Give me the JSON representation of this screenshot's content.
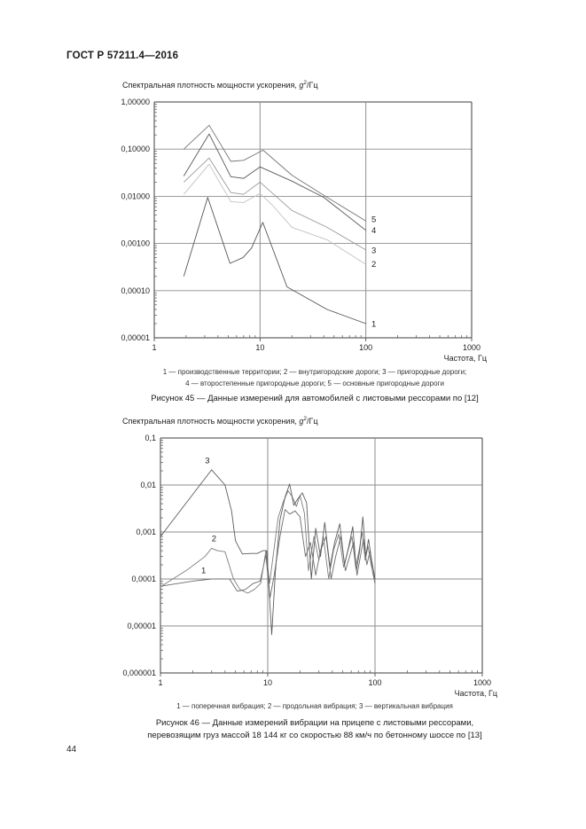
{
  "page": {
    "header": "ГОСТ Р 57211.4—2016",
    "page_number": "44"
  },
  "figure45": {
    "title_prefix": "Спектральная плотность мощности ускорения, ",
    "title_g": "g",
    "title_sup": "2",
    "title_suffix": "/Гц",
    "legend_line1": "1 — производственные территории; 2 — внутригородские дороги; 3 — пригородные дороги;",
    "legend_line2": "4 — второстепенные пригородные дороги; 5 — основные пригородные дороги",
    "caption": "Рисунок 45 — Данные измерений для автомобилей с листовыми рессорами по [12]"
  },
  "figure46": {
    "title_prefix": "Спектральная плотность мощности ускорения, ",
    "title_g": "g",
    "title_sup": "2",
    "title_suffix": "/Гц",
    "legend_line1": "1 — поперечная вибрация; 2 — продольная вибрация; 3 — вертикальная вибрация",
    "caption_line1": "Рисунок 46 — Данные измерений вибрации на прицепе с листовыми рессорами,",
    "caption_line2": "перевозящим груз массой 18 144 кг со скоростью 88 км/ч по бетонному шоссе по [13]"
  },
  "chart_data": [
    {
      "type": "line",
      "title": "Спектральная плотность мощности ускорения, g²/Гц",
      "xlabel": "Частота, Гц",
      "x_scale": "log",
      "y_scale": "log",
      "xlim": [
        1,
        1000
      ],
      "ylim": [
        1e-05,
        1
      ],
      "grid": true,
      "x_tick_labels": [
        "1",
        "10",
        "100",
        "1000"
      ],
      "y_tick_labels": [
        "1,00000",
        "0,10000",
        "0,01000",
        "0,00100",
        "0,00010",
        "0,00001"
      ],
      "series": [
        {
          "label": "1",
          "name": "производственные территории",
          "color": "#555555",
          "label_pos": [
            113,
            1.95e-05
          ],
          "points": [
            [
              1.9,
              0.0002
            ],
            [
              3.2,
              0.0095
            ],
            [
              5.2,
              0.00038
            ],
            [
              6.9,
              0.0005
            ],
            [
              8.3,
              0.0008
            ],
            [
              10.6,
              0.0028
            ],
            [
              18,
              0.00012
            ],
            [
              43,
              4e-05
            ],
            [
              100,
              2e-05
            ]
          ]
        },
        {
          "label": "2",
          "name": "внутригородские дороги",
          "color": "#c2c2c2",
          "label_pos": [
            113,
            0.00036
          ],
          "points": [
            [
              1.9,
              0.011
            ],
            [
              3.3,
              0.048
            ],
            [
              5.3,
              0.0077
            ],
            [
              7,
              0.0074
            ],
            [
              10,
              0.0115
            ],
            [
              13,
              0.0066
            ],
            [
              20,
              0.0022
            ],
            [
              43,
              0.0012
            ],
            [
              100,
              0.00036
            ]
          ]
        },
        {
          "label": "3",
          "name": "пригородные дороги",
          "color": "#9a9a9a",
          "label_pos": [
            113,
            0.00071
          ],
          "points": [
            [
              1.9,
              0.02
            ],
            [
              3.3,
              0.065
            ],
            [
              5.3,
              0.012
            ],
            [
              7,
              0.011
            ],
            [
              10,
              0.02
            ],
            [
              20,
              0.005
            ],
            [
              43,
              0.0022
            ],
            [
              100,
              0.00073
            ]
          ]
        },
        {
          "label": "4",
          "name": "второстепенные пригородные дороги",
          "color": "#585858",
          "label_pos": [
            113,
            0.0019
          ],
          "points": [
            [
              1.9,
              0.027
            ],
            [
              3.3,
              0.21
            ],
            [
              5.3,
              0.026
            ],
            [
              7,
              0.024
            ],
            [
              10,
              0.042
            ],
            [
              20,
              0.021
            ],
            [
              40,
              0.0095
            ],
            [
              100,
              0.0019
            ]
          ]
        },
        {
          "label": "5",
          "name": "основные пригородные дороги",
          "color": "#757575",
          "label_pos": [
            113,
            0.0032
          ],
          "points": [
            [
              1.9,
              0.1
            ],
            [
              3.3,
              0.32
            ],
            [
              5.3,
              0.055
            ],
            [
              7,
              0.058
            ],
            [
              10.7,
              0.095
            ],
            [
              20,
              0.028
            ],
            [
              40,
              0.0105
            ],
            [
              100,
              0.003
            ]
          ]
        }
      ]
    },
    {
      "type": "line",
      "title": "Спектральная плотность мощности ускорения, g²/Гц",
      "xlabel": "Частота, Гц",
      "x_scale": "log",
      "y_scale": "log",
      "xlim": [
        1,
        1000
      ],
      "ylim": [
        1e-06,
        0.1
      ],
      "grid": true,
      "x_tick_labels": [
        "1",
        "10",
        "100",
        "1000"
      ],
      "y_tick_labels": [
        "0,1",
        "0,01",
        "0,001",
        "0,0001",
        "0,00001",
        "0,000001"
      ],
      "series": [
        {
          "label": "1",
          "name": "поперечная вибрация",
          "color": "#6b6b6b",
          "label_pos": [
            2.4,
            0.00015
          ],
          "points": [
            [
              1,
              7e-05
            ],
            [
              2,
              9e-05
            ],
            [
              3,
              0.0001
            ],
            [
              4.4,
              0.0001
            ],
            [
              5.2,
              5.5e-05
            ],
            [
              6.2,
              6e-05
            ],
            [
              7.3,
              8e-05
            ],
            [
              8.5,
              9e-05
            ],
            [
              9.6,
              0.00032
            ],
            [
              10.5,
              4e-05
            ],
            [
              11.5,
              0.00012
            ],
            [
              13,
              0.0008
            ],
            [
              14.5,
              0.003
            ],
            [
              16,
              0.0024
            ],
            [
              18,
              0.0028
            ],
            [
              20,
              0.0021
            ],
            [
              22.5,
              0.0003
            ],
            [
              25,
              0.0006
            ],
            [
              28,
              0.00012
            ],
            [
              31,
              0.0004
            ],
            [
              35,
              0.0008
            ],
            [
              39,
              0.0001
            ],
            [
              43,
              0.0003
            ],
            [
              48,
              0.0008
            ],
            [
              53,
              0.00015
            ],
            [
              58,
              0.0003
            ],
            [
              63,
              0.0006
            ],
            [
              68,
              0.00012
            ],
            [
              73,
              0.0003
            ],
            [
              78,
              0.0007
            ],
            [
              84,
              0.0002
            ],
            [
              90,
              0.0004
            ],
            [
              95,
              0.00014
            ],
            [
              100,
              8e-05
            ]
          ]
        },
        {
          "label": "2",
          "name": "продольная вибрация",
          "color": "#7d7d7d",
          "label_pos": [
            3.0,
            0.00072
          ],
          "points": [
            [
              1,
              6.8e-05
            ],
            [
              1.8,
              0.00016
            ],
            [
              2.6,
              0.0003
            ],
            [
              3,
              0.00045
            ],
            [
              3.4,
              0.0004
            ],
            [
              4,
              0.00038
            ],
            [
              4.8,
              0.0001
            ],
            [
              5.5,
              6e-05
            ],
            [
              6.5,
              5e-05
            ],
            [
              7.5,
              6e-05
            ],
            [
              8.6,
              8e-05
            ],
            [
              9.6,
              0.0004
            ],
            [
              10.4,
              8e-05
            ],
            [
              11.2,
              0.0003
            ],
            [
              12.5,
              0.002
            ],
            [
              14,
              0.0045
            ],
            [
              15.5,
              0.0075
            ],
            [
              17,
              0.0055
            ],
            [
              18.5,
              0.0035
            ],
            [
              20,
              0.006
            ],
            [
              22,
              0.0025
            ],
            [
              24,
              0.00015
            ],
            [
              27,
              0.0008
            ],
            [
              30,
              0.00025
            ],
            [
              33,
              0.0008
            ],
            [
              37,
              0.0001
            ],
            [
              41,
              0.0004
            ],
            [
              46,
              0.0009
            ],
            [
              51,
              0.00018
            ],
            [
              56,
              0.0004
            ],
            [
              61,
              0.0008
            ],
            [
              66,
              0.00018
            ],
            [
              71,
              0.0004
            ],
            [
              76,
              0.001
            ],
            [
              81,
              0.00025
            ],
            [
              86,
              0.0005
            ],
            [
              92,
              0.0002
            ],
            [
              100,
              9e-05
            ]
          ]
        },
        {
          "label": "3",
          "name": "вертикальная вибрация",
          "color": "#5c5c5c",
          "label_pos": [
            2.6,
            0.033
          ],
          "points": [
            [
              1,
              0.0008
            ],
            [
              3,
              0.021
            ],
            [
              4,
              0.01
            ],
            [
              4.6,
              0.0028
            ],
            [
              5,
              0.00065
            ],
            [
              5.8,
              0.00034
            ],
            [
              7,
              0.00035
            ],
            [
              8,
              0.00035
            ],
            [
              9,
              0.0004
            ],
            [
              9.8,
              0.0004
            ],
            [
              10.9,
              6.5e-06
            ],
            [
              11.8,
              0.00015
            ],
            [
              13,
              0.0018
            ],
            [
              14.5,
              0.0055
            ],
            [
              16,
              0.0105
            ],
            [
              17.5,
              0.0037
            ],
            [
              19,
              0.005
            ],
            [
              21,
              0.0068
            ],
            [
              23,
              0.0042
            ],
            [
              25.5,
              0.0001
            ],
            [
              28,
              0.0012
            ],
            [
              31,
              0.0003
            ],
            [
              34,
              0.0016
            ],
            [
              38,
              0.00018
            ],
            [
              42,
              0.0006
            ],
            [
              47,
              0.0015
            ],
            [
              52,
              0.0002
            ],
            [
              57,
              0.0005
            ],
            [
              62,
              0.0013
            ],
            [
              67,
              0.00015
            ],
            [
              72,
              0.0004
            ],
            [
              77,
              0.0021
            ],
            [
              82,
              0.0003
            ],
            [
              87,
              0.0007
            ],
            [
              93,
              0.00025
            ],
            [
              100,
              0.0001
            ]
          ]
        }
      ]
    }
  ]
}
